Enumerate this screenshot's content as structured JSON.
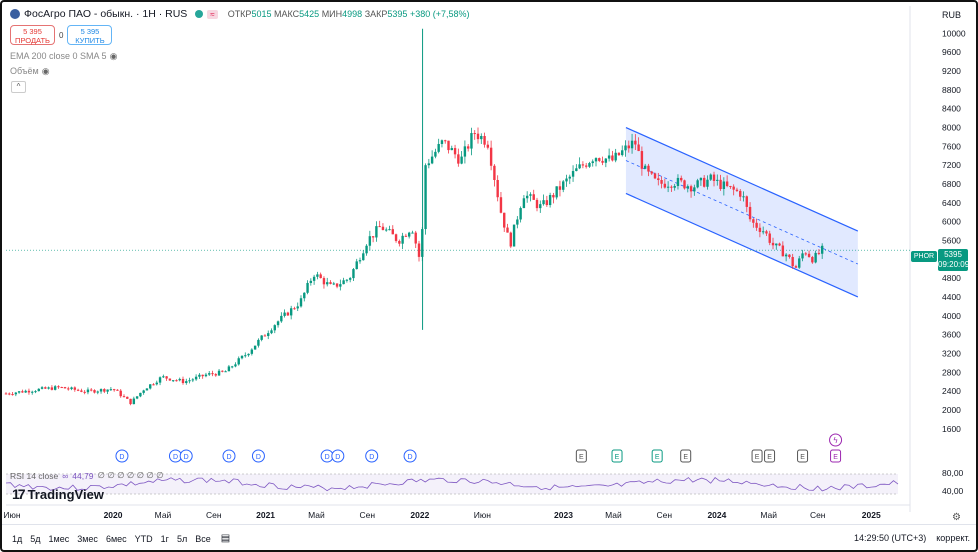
{
  "header": {
    "title": "ФосАгро ПАО - обыкн. · 1Н · RUS",
    "badge": "≈",
    "ohlc": [
      {
        "label": "ОТКР",
        "value": "5015"
      },
      {
        "label": "МАКС",
        "value": "5425"
      },
      {
        "label": "МИН",
        "value": "4998"
      },
      {
        "label": "ЗАКР",
        "value": "5395"
      }
    ],
    "change": "+380 (+7,58%)",
    "currency": "RUB"
  },
  "trade": {
    "sell_price": "5 395",
    "sell_label": "ПРОДАТЬ",
    "spread": "0",
    "buy_price": "5 395",
    "buy_label": "КУПИТЬ"
  },
  "indicators": {
    "ema_sma": "EMA 200 close 0 SMA 5",
    "volume": "Объём"
  },
  "rsi": {
    "label": "RSI 14 close",
    "value": "44,79",
    "extra": "∅ ∅ ∅ ∅ ∅ ∅ ∅"
  },
  "brand": "TradingView",
  "price_tag": {
    "symbol": "PHOR",
    "price": "5395",
    "countdown": "09:20:09"
  },
  "colors": {
    "up": "#089981",
    "down": "#f23645",
    "channel": "#2962ff",
    "channel_fill": "#a9c0ff",
    "rsi": "#7e57c2"
  },
  "bottom_bar": {
    "ranges": [
      "1д",
      "5д",
      "1мес",
      "3мес",
      "6мес",
      "YTD",
      "1г",
      "5л",
      "Все"
    ],
    "clock": "14:29:50 (UTC+3)",
    "adjust": "коррект."
  },
  "chart_data": {
    "type": "candlestick",
    "title": "ФосАгро ПАО - обыкн. · 1Н · RUS",
    "y_axis": {
      "min": 1000,
      "max": 10200,
      "ticks": [
        1600,
        2000,
        2400,
        2800,
        3200,
        3600,
        4000,
        4400,
        4800,
        5200,
        5600,
        6000,
        6400,
        6800,
        7200,
        7600,
        8000,
        8400,
        8800,
        9200,
        9600,
        10000
      ]
    },
    "x_axis": {
      "labels": [
        "Июн",
        "2020",
        "Май",
        "Сен",
        "2021",
        "Май",
        "Сен",
        "2022",
        "Июн",
        "2023",
        "Май",
        "Сен",
        "2024",
        "Май",
        "Сен",
        "2025"
      ],
      "label_positions": [
        0.0,
        0.12,
        0.176,
        0.233,
        0.291,
        0.348,
        0.405,
        0.464,
        0.534,
        0.625,
        0.681,
        0.738,
        0.797,
        0.855,
        0.91,
        0.97
      ]
    },
    "rsi_axis": {
      "ticks": [
        40,
        80
      ]
    },
    "last_close": 5395,
    "price_path": [
      {
        "t": 0.0,
        "p": 2350
      },
      {
        "t": 0.03,
        "p": 2420
      },
      {
        "t": 0.06,
        "p": 2480
      },
      {
        "t": 0.09,
        "p": 2390
      },
      {
        "t": 0.12,
        "p": 2450
      },
      {
        "t": 0.14,
        "p": 2150
      },
      {
        "t": 0.155,
        "p": 2450
      },
      {
        "t": 0.175,
        "p": 2700
      },
      {
        "t": 0.2,
        "p": 2600
      },
      {
        "t": 0.225,
        "p": 2750
      },
      {
        "t": 0.245,
        "p": 2800
      },
      {
        "t": 0.27,
        "p": 3200
      },
      {
        "t": 0.3,
        "p": 3800
      },
      {
        "t": 0.33,
        "p": 4300
      },
      {
        "t": 0.345,
        "p": 4900
      },
      {
        "t": 0.365,
        "p": 4600
      },
      {
        "t": 0.385,
        "p": 4800
      },
      {
        "t": 0.405,
        "p": 5600
      },
      {
        "t": 0.42,
        "p": 5900
      },
      {
        "t": 0.44,
        "p": 5600
      },
      {
        "t": 0.455,
        "p": 5900
      },
      {
        "t": 0.465,
        "p": 5100
      },
      {
        "t": 0.47,
        "p": 7200
      },
      {
        "t": 0.49,
        "p": 7700
      },
      {
        "t": 0.51,
        "p": 7300
      },
      {
        "t": 0.525,
        "p": 7900
      },
      {
        "t": 0.54,
        "p": 7700
      },
      {
        "t": 0.555,
        "p": 6200
      },
      {
        "t": 0.565,
        "p": 5500
      },
      {
        "t": 0.58,
        "p": 6600
      },
      {
        "t": 0.6,
        "p": 6300
      },
      {
        "t": 0.62,
        "p": 6700
      },
      {
        "t": 0.64,
        "p": 7100
      },
      {
        "t": 0.66,
        "p": 7400
      },
      {
        "t": 0.68,
        "p": 7300
      },
      {
        "t": 0.695,
        "p": 7550
      },
      {
        "t": 0.705,
        "p": 7700
      },
      {
        "t": 0.715,
        "p": 7100
      },
      {
        "t": 0.73,
        "p": 6800
      },
      {
        "t": 0.75,
        "p": 6850
      },
      {
        "t": 0.77,
        "p": 6750
      },
      {
        "t": 0.79,
        "p": 6900
      },
      {
        "t": 0.81,
        "p": 6700
      },
      {
        "t": 0.825,
        "p": 6600
      },
      {
        "t": 0.835,
        "p": 6000
      },
      {
        "t": 0.85,
        "p": 5800
      },
      {
        "t": 0.86,
        "p": 5500
      },
      {
        "t": 0.875,
        "p": 5300
      },
      {
        "t": 0.885,
        "p": 5000
      },
      {
        "t": 0.895,
        "p": 5400
      },
      {
        "t": 0.905,
        "p": 5200
      },
      {
        "t": 0.915,
        "p": 5395
      }
    ],
    "spikes": [
      {
        "t": 0.467,
        "high": 10100,
        "low": 3700
      }
    ],
    "channel": {
      "start": {
        "t": 0.695,
        "upper": 8000,
        "lower": 6600
      },
      "end": {
        "t": 0.955,
        "upper": 5800,
        "lower": 4400
      }
    },
    "dividend_markers": [
      0.13,
      0.19,
      0.202,
      0.25,
      0.283,
      0.36,
      0.372,
      0.41,
      0.453
    ],
    "earnings_markers": [
      0.645,
      0.685,
      0.73,
      0.762,
      0.842,
      0.856,
      0.893,
      0.93
    ],
    "split_marker": 0.93
  }
}
